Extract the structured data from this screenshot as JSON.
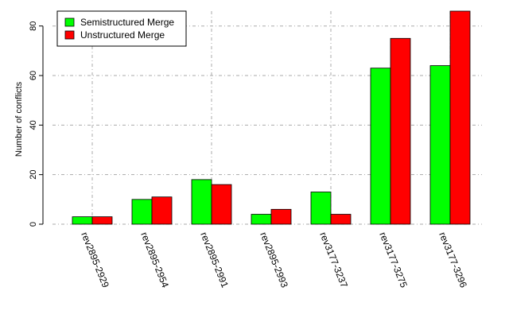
{
  "chart_data": {
    "type": "bar",
    "title": "",
    "xlabel": "",
    "ylabel": "Number of conflicts",
    "ylim": [
      0,
      86
    ],
    "yticks": [
      0,
      20,
      40,
      60,
      80
    ],
    "grid": true,
    "legend_position": "top-left",
    "categories": [
      "rev2895-2929",
      "rev2895-2954",
      "rev2895-2991",
      "rev2895-2993",
      "rev3177-3237",
      "rev3177-3275",
      "rev3177-3296"
    ],
    "series": [
      {
        "name": "Semistructured Merge",
        "color": "#00ff00",
        "values": [
          3,
          10,
          18,
          4,
          13,
          63,
          64
        ]
      },
      {
        "name": "Unstructured Merge",
        "color": "#ff0000",
        "values": [
          3,
          11,
          16,
          6,
          4,
          75,
          86
        ]
      }
    ]
  }
}
